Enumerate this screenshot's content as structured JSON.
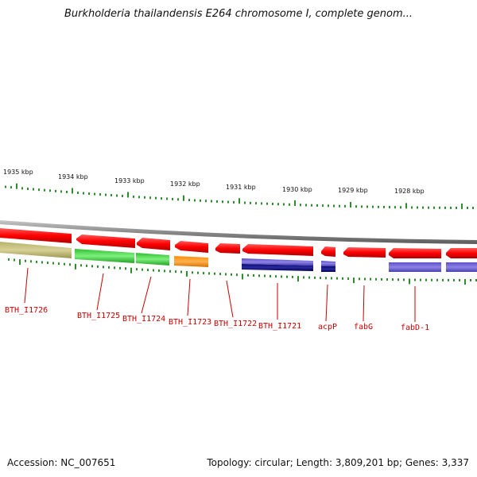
{
  "header": {
    "title": "Burkholderia thailandensis E264 chromosome I, complete genom..."
  },
  "footer": {
    "accession": "Accession: NC_007651",
    "topology": "Topology: circular; Length: 3,809,201 bp; Genes: 3,337"
  },
  "scale": {
    "labels": [
      "1935 kbp",
      "1934 kbp",
      "1933 kbp",
      "1932 kbp",
      "1931 kbp",
      "1930 kbp",
      "1929 kbp",
      "1928 kbp"
    ]
  },
  "genes": [
    {
      "name": "BTH_I1726",
      "color": "#bdb76b"
    },
    {
      "name": "BTH_I1725",
      "color": "#32cd32"
    },
    {
      "name": "BTH_I1724",
      "color": "#32cd32"
    },
    {
      "name": "BTH_I1723",
      "color": "#ff8c00"
    },
    {
      "name": "BTH_I1722",
      "color": ""
    },
    {
      "name": "BTH_I1721",
      "color": "#6a5acd"
    },
    {
      "name": "acpP",
      "color": "#000080"
    },
    {
      "name": "fabG",
      "color": ""
    },
    {
      "name": "fabD-1",
      "color": "#6a5acd"
    }
  ],
  "colors": {
    "cds": "#ff0000",
    "backbone": "#888888",
    "ticks": "#2e8b2e",
    "label": "#cc0000"
  }
}
